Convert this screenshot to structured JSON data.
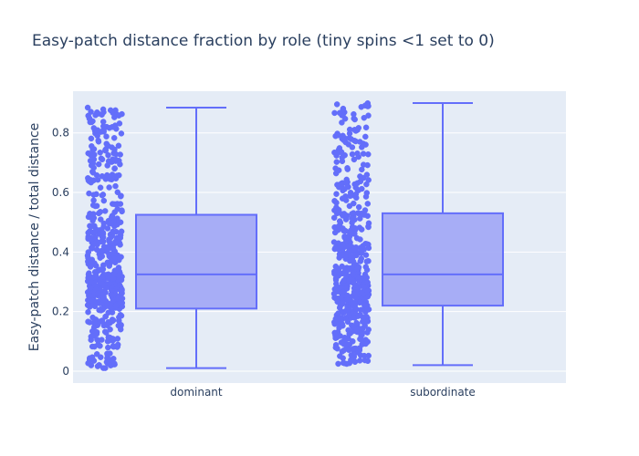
{
  "chart_data": {
    "type": "box",
    "title": "Easy-patch distance fraction by role (tiny spins <1 set to 0)",
    "xlabel": "",
    "ylabel": "Easy-patch distance / total distance",
    "categories": [
      "dominant",
      "subordinate"
    ],
    "ylim": [
      -0.04,
      0.94
    ],
    "yticks": [
      0,
      0.2,
      0.4,
      0.6,
      0.8
    ],
    "ytick_labels": [
      "0",
      "0.2",
      "0.4",
      "0.6",
      "0.8"
    ],
    "grid": true,
    "boxpoints": "all",
    "series": [
      {
        "values_summary": [
          {
            "category": "dominant",
            "min": 0.01,
            "q1": 0.21,
            "median": 0.325,
            "q3": 0.525,
            "max": 0.885
          },
          {
            "category": "subordinate",
            "min": 0.02,
            "q1": 0.22,
            "median": 0.325,
            "q3": 0.53,
            "max": 0.9
          }
        ]
      }
    ],
    "colors": {
      "box_line": "#636efa",
      "box_fill": "#a3aaf5",
      "plot_bg": "#e5ecf6",
      "grid": "#ffffff",
      "text": "#2a3f5f"
    }
  }
}
